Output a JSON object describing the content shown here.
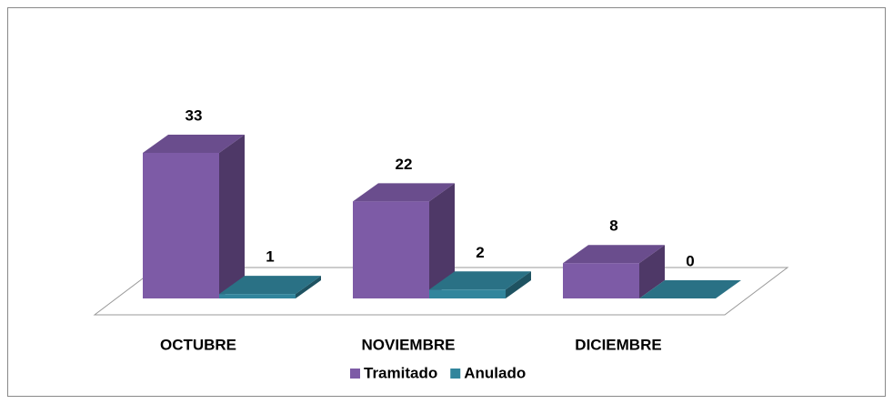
{
  "chart_data": {
    "type": "bar3d",
    "categories": [
      "OCTUBRE",
      "NOVIEMBRE",
      "DICIEMBRE"
    ],
    "series": [
      {
        "name": "Tramitado",
        "color": "#7d5ba6",
        "values": [
          33,
          22,
          8
        ]
      },
      {
        "name": "Anulado",
        "color": "#31859c",
        "values": [
          1,
          2,
          0
        ]
      }
    ],
    "legend": "bottom"
  }
}
